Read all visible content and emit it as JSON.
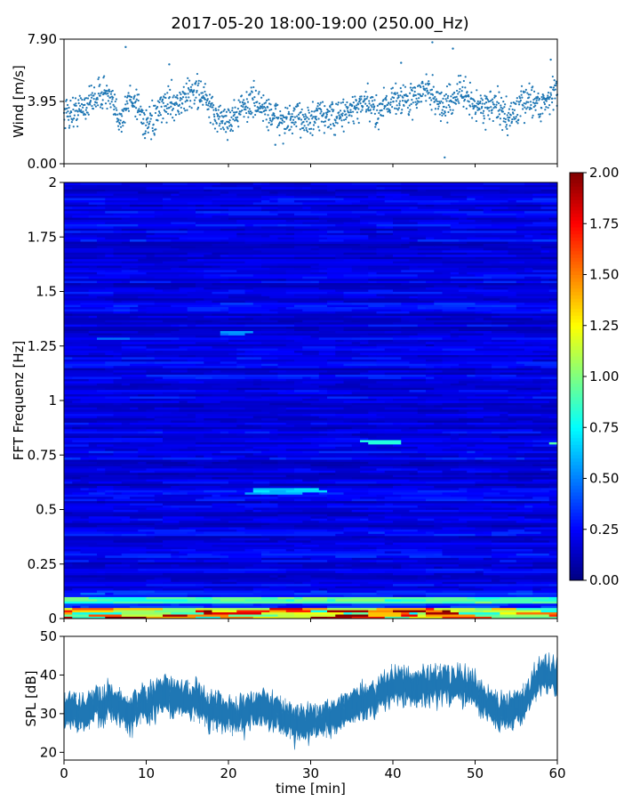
{
  "title": "2017-05-20 18:00-19:00 (250.00_Hz)",
  "colors": {
    "series": "#1f77b4",
    "colormap": "jet",
    "axis": "#000000"
  },
  "chart_data": [
    {
      "id": "wind",
      "type": "scatter",
      "ylabel": "Wind [m/s]",
      "xlim": [
        0,
        60
      ],
      "ylim": [
        0,
        7.9
      ],
      "yticks": [
        0,
        3.95,
        7.9
      ],
      "ytick_labels": [
        "0.00",
        "3.95",
        "7.90"
      ],
      "x": [
        0,
        1,
        2,
        3,
        4,
        5,
        6,
        7,
        8,
        9,
        10,
        11,
        12,
        13,
        14,
        15,
        16,
        17,
        18,
        19,
        20,
        21,
        22,
        23,
        24,
        25,
        26,
        27,
        28,
        29,
        30,
        31,
        32,
        33,
        34,
        35,
        36,
        37,
        38,
        39,
        40,
        41,
        42,
        43,
        44,
        45,
        46,
        47,
        48,
        49,
        50,
        51,
        52,
        53,
        54,
        55,
        56,
        57,
        58,
        59,
        60
      ],
      "y": [
        3.3,
        3.2,
        3.5,
        3.9,
        4.3,
        4.6,
        3.6,
        2.8,
        4.2,
        3.8,
        2.3,
        2.7,
        3.6,
        4.0,
        3.8,
        4.3,
        4.7,
        4.3,
        3.2,
        2.9,
        2.7,
        3.2,
        3.6,
        4.0,
        3.6,
        3.2,
        2.9,
        2.6,
        2.8,
        3.0,
        2.6,
        3.0,
        3.1,
        2.8,
        3.2,
        3.4,
        3.6,
        3.8,
        3.2,
        3.9,
        4.0,
        4.2,
        3.9,
        4.3,
        4.8,
        4.3,
        3.6,
        3.9,
        4.6,
        4.2,
        3.7,
        3.6,
        3.8,
        3.4,
        2.9,
        3.4,
        3.9,
        4.2,
        3.6,
        4.3,
        4.6
      ],
      "spread": 0.5,
      "spikes": [
        {
          "x": 7.5,
          "y": 7.4
        },
        {
          "x": 12.8,
          "y": 6.3
        },
        {
          "x": 25.7,
          "y": 1.2
        },
        {
          "x": 41.0,
          "y": 6.4
        },
        {
          "x": 44.8,
          "y": 7.7
        },
        {
          "x": 47.3,
          "y": 7.3
        },
        {
          "x": 46.3,
          "y": 0.4
        },
        {
          "x": 59.2,
          "y": 6.6
        }
      ]
    },
    {
      "id": "spectrogram",
      "type": "heatmap",
      "ylabel": "FFT Frequenz [Hz]",
      "xlim": [
        0,
        60
      ],
      "ylim": [
        0,
        2
      ],
      "yticks": [
        0,
        0.25,
        0.5,
        0.75,
        1,
        1.25,
        1.5,
        1.75,
        2
      ],
      "ytick_labels": [
        "0",
        "0.25",
        "0.5",
        "0.75",
        "1",
        "1.25",
        "1.5",
        "1.75",
        "2"
      ],
      "colorbar": {
        "min": 0,
        "max": 2,
        "ticks": [
          0,
          0.25,
          0.5,
          0.75,
          1,
          1.25,
          1.5,
          1.75,
          2
        ],
        "tick_labels": [
          "0.00",
          "0.25",
          "0.50",
          "0.75",
          "1.00",
          "1.25",
          "1.50",
          "1.75",
          "2.00"
        ]
      },
      "background_level": 0.2,
      "low_frequency_band": {
        "below_hz": 0.05,
        "level": 1.7
      },
      "highlights": [
        {
          "t0": 22.8,
          "t1": 29.5,
          "f0": 0.57,
          "f1": 0.6,
          "level": 0.65
        },
        {
          "t0": 38.0,
          "t1": 41.0,
          "f0": 0.8,
          "f1": 0.82,
          "level": 0.75
        },
        {
          "t0": 58.0,
          "t1": 60.0,
          "f0": 0.8,
          "f1": 0.81,
          "level": 0.9
        },
        {
          "t0": 4.0,
          "t1": 8.0,
          "f0": 1.28,
          "f1": 1.3,
          "level": 0.45
        },
        {
          "t0": 18.8,
          "t1": 22.0,
          "f0": 1.3,
          "f1": 1.32,
          "level": 0.5
        },
        {
          "t0": 0.0,
          "t1": 60.0,
          "f0": 0.07,
          "f1": 0.1,
          "level": 0.9
        }
      ]
    },
    {
      "id": "spl",
      "type": "area",
      "ylabel": "SPL [dB]",
      "xlabel": "time [min]",
      "xlim": [
        0,
        60
      ],
      "ylim": [
        18,
        50
      ],
      "yticks": [
        20,
        30,
        40,
        50
      ],
      "ytick_labels": [
        "20",
        "30",
        "40",
        "50"
      ],
      "xticks": [
        0,
        10,
        20,
        30,
        40,
        50,
        60
      ],
      "xtick_labels": [
        "0",
        "10",
        "20",
        "30",
        "40",
        "50",
        "60"
      ],
      "x": [
        0,
        2,
        4,
        6,
        8,
        10,
        12,
        14,
        16,
        18,
        20,
        22,
        24,
        26,
        28,
        30,
        32,
        34,
        36,
        38,
        40,
        42,
        44,
        46,
        48,
        50,
        52,
        54,
        56,
        58,
        60
      ],
      "y": [
        31,
        30,
        32,
        33,
        30,
        32,
        35,
        34,
        33,
        31,
        29,
        30,
        32,
        30,
        28,
        27,
        29,
        31,
        33,
        34,
        38,
        36,
        37,
        38,
        37,
        36,
        32,
        30,
        33,
        40,
        39
      ],
      "band": 3.5
    }
  ]
}
